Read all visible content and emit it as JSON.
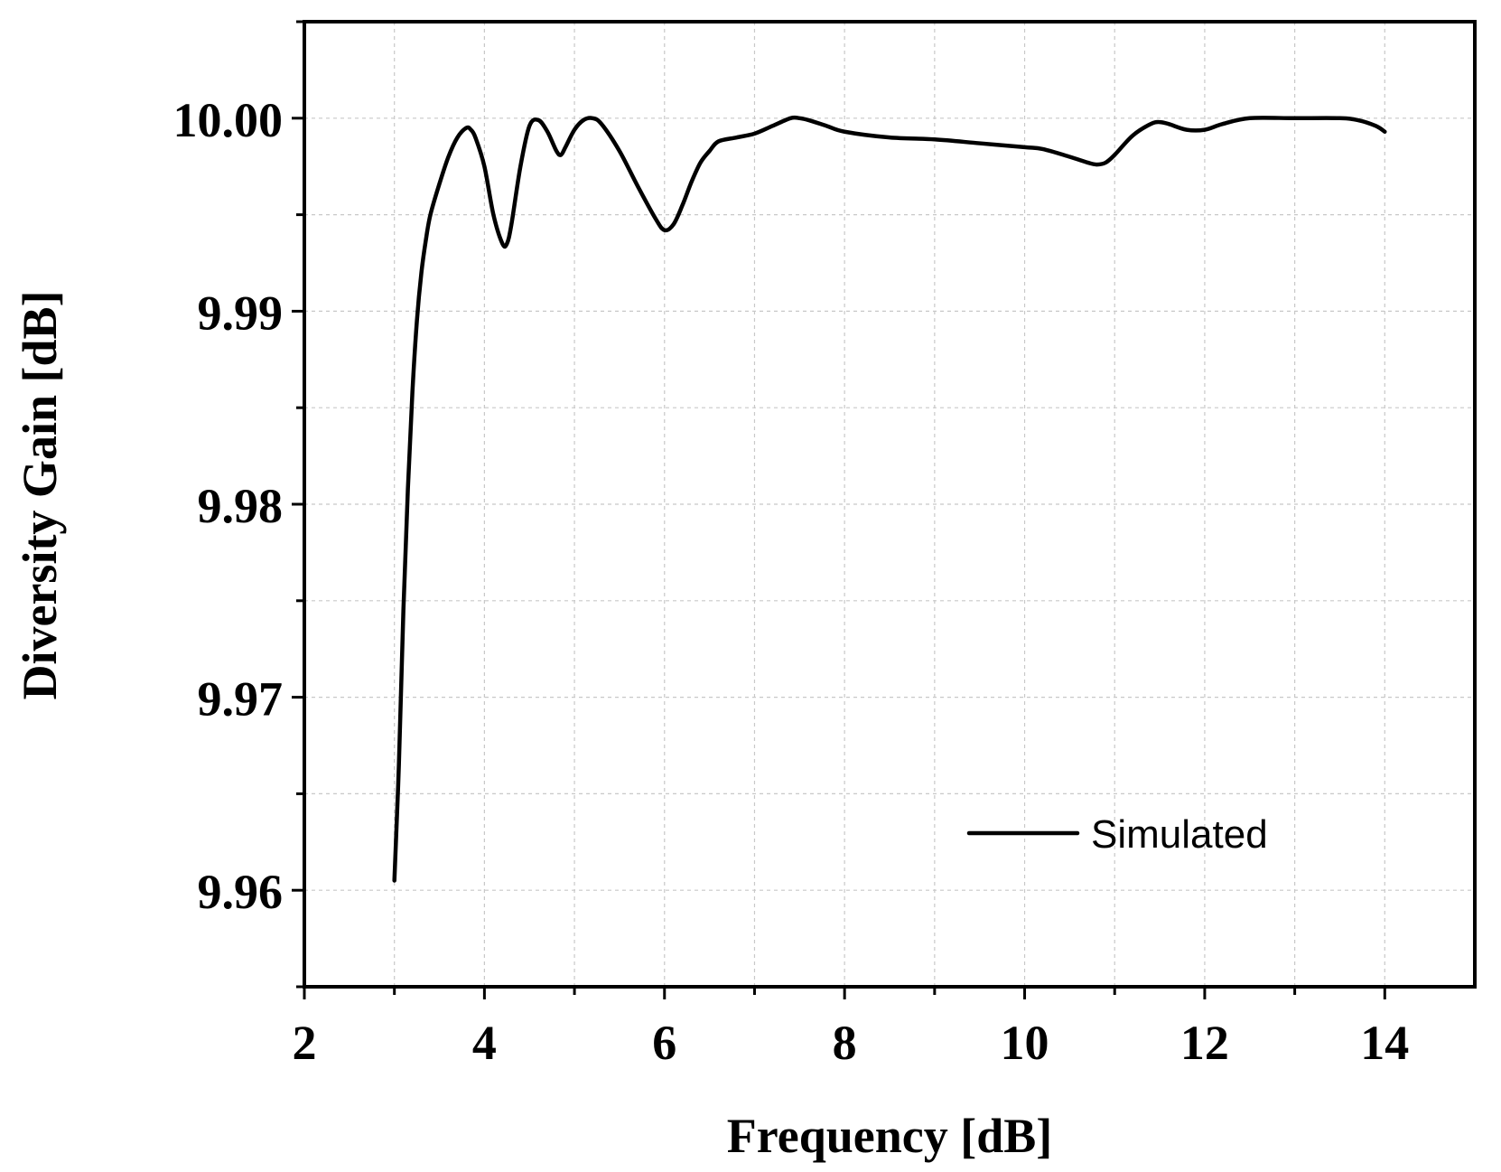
{
  "chart_data": {
    "type": "line",
    "xlabel": "Frequency [dB]",
    "ylabel": "Diversity Gain [dB]",
    "xlim": [
      2,
      15
    ],
    "ylim": [
      9.955,
      10.005
    ],
    "x_ticks": [
      2,
      4,
      6,
      8,
      10,
      12,
      14
    ],
    "x_tick_labels": [
      "2",
      "4",
      "6",
      "8",
      "10",
      "12",
      "14"
    ],
    "y_ticks": [
      9.96,
      9.97,
      9.98,
      9.99,
      10.0
    ],
    "y_tick_labels": [
      "9.96",
      "9.97",
      "9.98",
      "9.99",
      "10.00"
    ],
    "grid": true,
    "legend_position": "bottom-right",
    "series": [
      {
        "name": "Simulated",
        "color": "#000000",
        "x": [
          3.0,
          3.05,
          3.1,
          3.15,
          3.2,
          3.25,
          3.3,
          3.35,
          3.4,
          3.5,
          3.6,
          3.7,
          3.8,
          3.85,
          3.9,
          4.0,
          4.1,
          4.2,
          4.25,
          4.3,
          4.4,
          4.5,
          4.6,
          4.7,
          4.8,
          4.85,
          4.9,
          5.0,
          5.1,
          5.2,
          5.3,
          5.5,
          5.7,
          5.9,
          6.0,
          6.1,
          6.2,
          6.3,
          6.4,
          6.5,
          6.6,
          6.8,
          7.0,
          7.2,
          7.4,
          7.5,
          7.6,
          7.8,
          8.0,
          8.5,
          9.0,
          9.5,
          10.0,
          10.2,
          10.5,
          10.7,
          10.8,
          10.9,
          11.0,
          11.2,
          11.4,
          11.5,
          11.6,
          11.8,
          12.0,
          12.2,
          12.5,
          13.0,
          13.5,
          13.7,
          13.9,
          14.0
        ],
        "y": [
          9.9605,
          9.9665,
          9.9745,
          9.9808,
          9.9858,
          9.9895,
          9.992,
          9.9937,
          9.995,
          9.9966,
          9.998,
          9.999,
          9.9995,
          9.9994,
          9.999,
          9.9975,
          9.995,
          9.9935,
          9.9935,
          9.9945,
          9.9975,
          9.9996,
          9.9999,
          9.9993,
          9.9983,
          9.9981,
          9.9985,
          9.9994,
          9.9999,
          10.0,
          9.9997,
          9.9983,
          9.9965,
          9.9948,
          9.9942,
          9.9945,
          9.9955,
          9.9967,
          9.9977,
          9.9983,
          9.9988,
          9.999,
          9.9992,
          9.9996,
          10.0,
          10.0,
          9.9999,
          9.9996,
          9.9993,
          9.999,
          9.9989,
          9.9987,
          9.9985,
          9.9984,
          9.998,
          9.9977,
          9.9976,
          9.9977,
          9.9981,
          9.9991,
          9.9997,
          9.9998,
          9.9997,
          9.9994,
          9.9994,
          9.9997,
          10.0,
          10.0,
          10.0,
          9.9999,
          9.9996,
          9.9993
        ]
      }
    ]
  }
}
